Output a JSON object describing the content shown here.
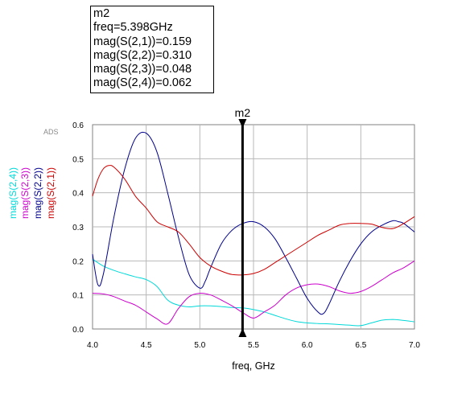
{
  "marker_box": {
    "name": "m2",
    "lines": [
      "freq=5.398GHz",
      "mag(S(2,1))=0.159",
      "mag(S(2,2))=0.310",
      "mag(S(2,3))=0.048",
      "mag(S(2,4))=0.062"
    ]
  },
  "chart_data": {
    "type": "line",
    "title": "",
    "xlabel": "freq, GHz",
    "ylabel": "",
    "xlim": [
      4.0,
      7.0
    ],
    "ylim": [
      0.0,
      0.6
    ],
    "grid": true,
    "watermark": "ADS",
    "x_ticks": [
      "4.0",
      "4.5",
      "5.0",
      "5.5",
      "6.0",
      "6.5",
      "7.0"
    ],
    "y_ticks": [
      "0.0",
      "0.1",
      "0.2",
      "0.3",
      "0.4",
      "0.5",
      "0.6"
    ],
    "marker": {
      "label": "m2",
      "x": 5.398
    },
    "series": [
      {
        "name": "mag(S(2,4))",
        "color": "#00d8d8",
        "x": [
          4.0,
          4.1,
          4.2,
          4.3,
          4.4,
          4.5,
          4.6,
          4.7,
          4.8,
          4.9,
          5.0,
          5.1,
          5.2,
          5.3,
          5.4,
          5.5,
          5.6,
          5.7,
          5.8,
          5.9,
          6.0,
          6.1,
          6.2,
          6.3,
          6.4,
          6.5,
          6.6,
          6.7,
          6.8,
          6.9,
          7.0
        ],
        "y": [
          0.205,
          0.185,
          0.172,
          0.162,
          0.153,
          0.145,
          0.125,
          0.085,
          0.07,
          0.065,
          0.068,
          0.068,
          0.066,
          0.063,
          0.062,
          0.057,
          0.05,
          0.04,
          0.03,
          0.022,
          0.018,
          0.016,
          0.015,
          0.013,
          0.011,
          0.01,
          0.018,
          0.026,
          0.028,
          0.025,
          0.021
        ]
      },
      {
        "name": "mag(S(2,3))",
        "color": "#cc00cc",
        "x": [
          4.0,
          4.1,
          4.2,
          4.3,
          4.4,
          4.5,
          4.6,
          4.7,
          4.8,
          4.9,
          5.0,
          5.1,
          5.2,
          5.3,
          5.4,
          5.5,
          5.6,
          5.7,
          5.8,
          5.9,
          6.0,
          6.1,
          6.2,
          6.3,
          6.4,
          6.5,
          6.6,
          6.7,
          6.8,
          6.9,
          7.0
        ],
        "y": [
          0.105,
          0.103,
          0.095,
          0.082,
          0.07,
          0.05,
          0.03,
          0.015,
          0.06,
          0.095,
          0.105,
          0.1,
          0.085,
          0.068,
          0.048,
          0.032,
          0.05,
          0.07,
          0.1,
          0.12,
          0.13,
          0.132,
          0.125,
          0.112,
          0.105,
          0.11,
          0.125,
          0.145,
          0.165,
          0.18,
          0.2
        ]
      },
      {
        "name": "mag(S(2,2))",
        "color": "#00008b",
        "x": [
          4.0,
          4.05,
          4.1,
          4.2,
          4.3,
          4.4,
          4.5,
          4.6,
          4.7,
          4.8,
          4.9,
          5.0,
          5.05,
          5.1,
          5.2,
          5.3,
          5.4,
          5.5,
          5.6,
          5.7,
          5.8,
          5.9,
          6.0,
          6.1,
          6.15,
          6.2,
          6.3,
          6.4,
          6.5,
          6.6,
          6.7,
          6.8,
          6.85,
          6.9,
          7.0
        ],
        "y": [
          0.22,
          0.13,
          0.16,
          0.33,
          0.47,
          0.56,
          0.575,
          0.52,
          0.4,
          0.27,
          0.16,
          0.12,
          0.14,
          0.18,
          0.25,
          0.29,
          0.31,
          0.315,
          0.3,
          0.265,
          0.21,
          0.15,
          0.09,
          0.05,
          0.045,
          0.07,
          0.14,
          0.2,
          0.25,
          0.285,
          0.305,
          0.318,
          0.315,
          0.31,
          0.285
        ]
      },
      {
        "name": "mag(S(2,1))",
        "color": "#cc0000",
        "x": [
          4.0,
          4.05,
          4.1,
          4.15,
          4.2,
          4.3,
          4.4,
          4.5,
          4.6,
          4.7,
          4.8,
          4.9,
          5.0,
          5.1,
          5.2,
          5.3,
          5.4,
          5.5,
          5.6,
          5.7,
          5.8,
          5.9,
          6.0,
          6.1,
          6.2,
          6.3,
          6.4,
          6.5,
          6.6,
          6.7,
          6.8,
          6.9,
          7.0
        ],
        "y": [
          0.39,
          0.44,
          0.47,
          0.48,
          0.475,
          0.44,
          0.39,
          0.355,
          0.315,
          0.3,
          0.285,
          0.25,
          0.21,
          0.185,
          0.17,
          0.16,
          0.159,
          0.163,
          0.175,
          0.195,
          0.215,
          0.235,
          0.255,
          0.275,
          0.29,
          0.305,
          0.31,
          0.31,
          0.308,
          0.298,
          0.295,
          0.31,
          0.33
        ]
      }
    ]
  }
}
